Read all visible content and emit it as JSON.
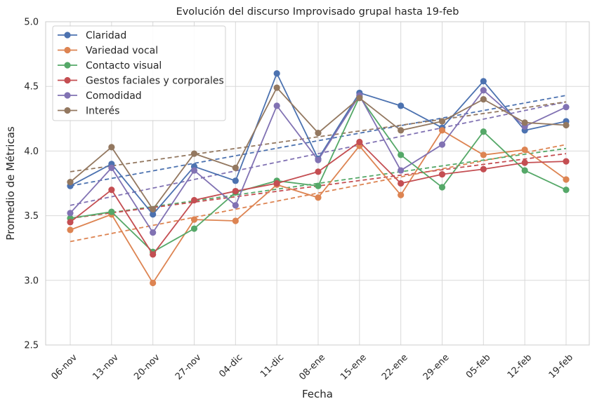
{
  "chart_data": {
    "type": "line",
    "title": "Evolución del discurso Improvisado grupal hasta 19-feb",
    "xlabel": "Fecha",
    "ylabel": "Promedio de Métricas",
    "categories": [
      "06-nov",
      "13-nov",
      "20-nov",
      "27-nov",
      "04-dic",
      "11-dic",
      "08-ene",
      "15-ene",
      "22-ene",
      "29-ene",
      "05-feb",
      "12-feb",
      "19-feb"
    ],
    "ylim": [
      2.5,
      5.0
    ],
    "yticks": [
      "2.5",
      "3.0",
      "3.5",
      "4.0",
      "4.5",
      "5.0"
    ],
    "grid": true,
    "legend_position": "top-left",
    "trendlines": true,
    "series": [
      {
        "name": "Claridad",
        "color": "#4c72b0",
        "values": [
          3.73,
          3.9,
          3.51,
          3.88,
          3.77,
          4.6,
          3.94,
          4.45,
          4.35,
          4.18,
          4.54,
          4.16,
          4.23
        ],
        "trend": [
          3.73,
          4.43
        ]
      },
      {
        "name": "Variedad vocal",
        "color": "#dd8452",
        "values": [
          3.39,
          3.51,
          2.98,
          3.47,
          3.46,
          3.74,
          3.64,
          4.04,
          3.66,
          4.16,
          3.97,
          4.01,
          3.78
        ],
        "trend": [
          3.3,
          4.05
        ]
      },
      {
        "name": "Contacto visual",
        "color": "#55a868",
        "values": [
          3.48,
          3.53,
          3.22,
          3.4,
          3.68,
          3.77,
          3.73,
          4.42,
          3.97,
          3.72,
          4.15,
          3.85,
          3.7
        ],
        "trend": [
          3.48,
          4.02
        ]
      },
      {
        "name": "Gestos faciales y corporales",
        "color": "#c44e52",
        "values": [
          3.45,
          3.7,
          3.2,
          3.62,
          3.69,
          3.75,
          3.84,
          4.07,
          3.75,
          3.82,
          3.86,
          3.91,
          3.92
        ],
        "trend": [
          3.48,
          3.98
        ]
      },
      {
        "name": "Comodidad",
        "color": "#8172b3",
        "values": [
          3.52,
          3.87,
          3.37,
          3.85,
          3.58,
          4.35,
          3.93,
          4.43,
          3.85,
          4.05,
          4.47,
          4.19,
          4.34
        ],
        "trend": [
          3.58,
          4.38
        ]
      },
      {
        "name": "Interés",
        "color": "#937860",
        "values": [
          3.76,
          4.03,
          3.55,
          3.98,
          3.87,
          4.49,
          4.14,
          4.41,
          4.16,
          4.23,
          4.4,
          4.22,
          4.2
        ],
        "trend": [
          3.84,
          4.38
        ]
      }
    ]
  }
}
